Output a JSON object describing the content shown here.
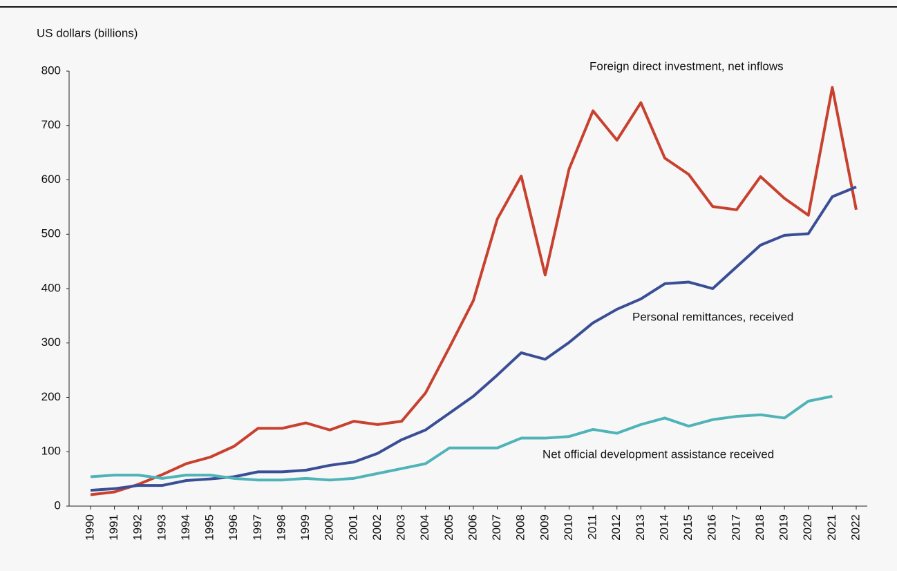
{
  "chart_data": {
    "type": "line",
    "ylabel": "US dollars (billions)",
    "categories": [
      "1990",
      "1991",
      "1992",
      "1993",
      "1994",
      "1995",
      "1996",
      "1997",
      "1998",
      "1999",
      "2000",
      "2001",
      "2002",
      "2003",
      "2004",
      "2005",
      "2006",
      "2007",
      "2008",
      "2009",
      "2010",
      "2011",
      "2012",
      "2013",
      "2014",
      "2015",
      "2016",
      "2017",
      "2018",
      "2019",
      "2020",
      "2021",
      "2022"
    ],
    "series": [
      {
        "name": "Foreign direct investment, net inflows",
        "color": "#c8412f",
        "values": [
          21,
          26,
          40,
          58,
          78,
          90,
          110,
          143,
          143,
          153,
          140,
          156,
          150,
          156,
          208,
          292,
          378,
          528,
          607,
          425,
          620,
          727,
          673,
          742,
          640,
          610,
          551,
          545,
          606,
          566,
          535,
          770,
          545
        ]
      },
      {
        "name": "Personal remittances, received",
        "color": "#3a4e96",
        "values": [
          29,
          32,
          38,
          38,
          47,
          50,
          54,
          63,
          63,
          66,
          75,
          81,
          97,
          122,
          140,
          171,
          202,
          241,
          282,
          270,
          301,
          337,
          362,
          381,
          409,
          412,
          400,
          440,
          480,
          498,
          501,
          569,
          587
        ]
      },
      {
        "name": "Net official development assistance received",
        "color": "#4fb3b8",
        "values": [
          54,
          57,
          57,
          51,
          57,
          57,
          51,
          48,
          48,
          51,
          48,
          51,
          60,
          69,
          78,
          107,
          107,
          107,
          125,
          125,
          128,
          141,
          134,
          150,
          162,
          147,
          159,
          165,
          168,
          162,
          193,
          202,
          null
        ]
      }
    ],
    "ylim": [
      0,
      800
    ],
    "yticks": [
      0,
      100,
      200,
      300,
      400,
      500,
      600,
      700,
      800
    ],
    "grid": false
  }
}
